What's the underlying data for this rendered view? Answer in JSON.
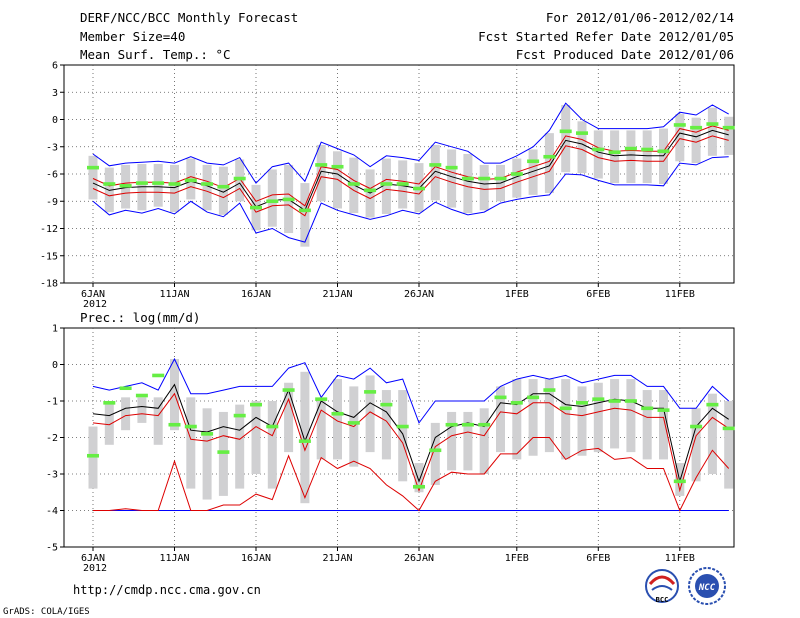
{
  "header": {
    "title": "DERF/NCC/BCC Monthly Forecast",
    "member_size": "Member Size=40",
    "variable": "Mean Surf. Temp.: °C",
    "period": "For 2012/01/06-2012/02/14",
    "started": "Fcst Started Refer Date 2012/01/05",
    "produced": "Fcst Produced Date 2012/01/06"
  },
  "footer": {
    "url": "http://cmdp.ncc.cma.gov.cn",
    "credit": "GrADS: COLA/IGES",
    "logo_left_text": "BCC",
    "logo_right_text": "NCC"
  },
  "colors": {
    "ensemble_max": "#0000ff",
    "ensemble_min": "#0000ff",
    "ensemble_mean": "#000000",
    "spread_band": "#dd0000",
    "observed": "#66ee44",
    "box": "#d0d0d2",
    "grid": "#555555"
  },
  "chart_data": [
    {
      "type": "line",
      "title": "Mean Surf. Temp.: °C",
      "ylabel": "°C",
      "ylim": [
        -18,
        6
      ],
      "yticks": [
        6,
        3,
        0,
        -3,
        -6,
        -9,
        -12,
        -15,
        -18
      ],
      "day_range": [
        0,
        39
      ],
      "xticks": [
        {
          "day": 0,
          "label": "6JAN"
        },
        {
          "day": 5,
          "label": "11JAN"
        },
        {
          "day": 10,
          "label": "16JAN"
        },
        {
          "day": 15,
          "label": "21JAN"
        },
        {
          "day": 20,
          "label": "26JAN"
        },
        {
          "day": 26,
          "label": "1FEB"
        },
        {
          "day": 31,
          "label": "6FEB"
        },
        {
          "day": 36,
          "label": "11FEB"
        }
      ],
      "year_label": "2012",
      "series": [
        {
          "name": "max",
          "values": [
            -3.8,
            -5.1,
            -4.8,
            -4.7,
            -4.6,
            -4.8,
            -4.1,
            -4.8,
            -5.0,
            -4.2,
            -7.0,
            -5.2,
            -4.8,
            -6.8,
            -2.5,
            -3.2,
            -3.9,
            -5.2,
            -4.0,
            -4.2,
            -4.5,
            -2.5,
            -3.0,
            -3.5,
            -4.8,
            -4.8,
            -4.0,
            -3.0,
            -1.2,
            1.8,
            0.0,
            -1.0,
            -1.0,
            -1.0,
            -1.0,
            -0.8,
            0.8,
            0.5,
            1.6,
            0.6
          ]
        },
        {
          "name": "upper",
          "values": [
            -6.5,
            -7.3,
            -7.0,
            -6.9,
            -6.9,
            -7.0,
            -6.3,
            -6.8,
            -7.5,
            -6.5,
            -9.0,
            -8.3,
            -8.2,
            -9.5,
            -5.2,
            -5.5,
            -6.7,
            -7.6,
            -6.6,
            -6.8,
            -7.1,
            -5.2,
            -5.8,
            -6.3,
            -6.6,
            -6.5,
            -5.8,
            -5.2,
            -4.6,
            -1.8,
            -2.2,
            -3.1,
            -3.5,
            -3.4,
            -3.5,
            -3.5,
            -1.0,
            -1.4,
            -0.7,
            -1.2
          ]
        },
        {
          "name": "mean",
          "values": [
            -7.0,
            -7.8,
            -7.5,
            -7.4,
            -7.4,
            -7.5,
            -6.8,
            -7.3,
            -8.0,
            -7.0,
            -9.6,
            -8.9,
            -8.8,
            -10.0,
            -5.7,
            -6.0,
            -7.2,
            -8.1,
            -7.1,
            -7.3,
            -7.6,
            -5.7,
            -6.3,
            -6.8,
            -7.1,
            -7.0,
            -6.3,
            -5.7,
            -5.1,
            -2.3,
            -2.7,
            -3.6,
            -4.0,
            -3.9,
            -4.0,
            -4.0,
            -1.5,
            -1.9,
            -1.2,
            -1.7
          ]
        },
        {
          "name": "lower",
          "values": [
            -7.6,
            -8.4,
            -8.1,
            -8.0,
            -8.0,
            -8.1,
            -7.4,
            -7.9,
            -8.6,
            -7.6,
            -10.2,
            -9.5,
            -9.4,
            -10.6,
            -6.3,
            -6.6,
            -7.8,
            -8.7,
            -7.7,
            -7.9,
            -8.2,
            -6.3,
            -6.9,
            -7.4,
            -7.7,
            -7.6,
            -6.9,
            -6.3,
            -5.7,
            -2.9,
            -3.3,
            -4.2,
            -4.6,
            -4.5,
            -4.6,
            -4.6,
            -2.1,
            -2.5,
            -1.8,
            -2.3
          ]
        },
        {
          "name": "min",
          "values": [
            -9.0,
            -10.5,
            -10.0,
            -10.3,
            -9.8,
            -10.4,
            -9.0,
            -10.2,
            -10.7,
            -9.2,
            -12.5,
            -12.0,
            -13.0,
            -13.5,
            -9.2,
            -10.0,
            -10.5,
            -11.0,
            -10.6,
            -10.0,
            -10.4,
            -9.1,
            -9.9,
            -10.5,
            -10.2,
            -9.2,
            -8.8,
            -8.5,
            -8.3,
            -6.0,
            -6.1,
            -6.7,
            -7.2,
            -7.2,
            -7.2,
            -7.3,
            -4.8,
            -5.0,
            -4.2,
            -4.1
          ]
        },
        {
          "name": "box_high",
          "values": [
            -4.0,
            -5.3,
            -5.0,
            -4.9,
            -4.9,
            -5.0,
            -4.3,
            -5.0,
            -5.2,
            -4.4,
            -7.2,
            -5.5,
            -5.0,
            -7.0,
            -2.8,
            -3.5,
            -4.2,
            -5.5,
            -4.3,
            -4.5,
            -4.8,
            -2.8,
            -3.3,
            -3.8,
            -5.0,
            -5.0,
            -4.3,
            -3.3,
            -1.5,
            1.6,
            -0.2,
            -1.2,
            -1.2,
            -1.2,
            -1.2,
            -1.0,
            0.6,
            0.2,
            1.3,
            0.3
          ]
        },
        {
          "name": "box_low",
          "values": [
            -8.8,
            -10.2,
            -9.8,
            -10.0,
            -9.6,
            -10.2,
            -8.8,
            -10.0,
            -10.5,
            -9.0,
            -12.2,
            -11.8,
            -12.5,
            -14.0,
            -9.0,
            -9.8,
            -10.3,
            -10.8,
            -10.4,
            -9.8,
            -10.2,
            -8.9,
            -9.7,
            -10.3,
            -10.0,
            -9.0,
            -8.6,
            -8.3,
            -8.1,
            -5.8,
            -5.9,
            -6.5,
            -7.0,
            -7.0,
            -7.0,
            -7.1,
            -4.6,
            -4.8,
            -4.0,
            -3.9
          ]
        },
        {
          "name": "observed",
          "values": [
            -5.3,
            -7.1,
            -7.3,
            -7.0,
            -7.0,
            -7.1,
            -6.7,
            -7.1,
            -7.4,
            -6.5,
            -9.7,
            -9.0,
            -8.8,
            -10.0,
            -5.0,
            -5.2,
            -7.1,
            -7.8,
            -7.1,
            -7.1,
            -7.6,
            -5.0,
            -5.3,
            -6.5,
            -6.5,
            -6.5,
            -6.0,
            -4.6,
            -4.1,
            -1.3,
            -1.5,
            -3.3,
            -3.6,
            -3.2,
            -3.3,
            -3.5,
            -0.6,
            -0.9,
            -0.5,
            -0.9
          ]
        }
      ]
    },
    {
      "type": "line",
      "title": "Prec.: log(mm/d)",
      "ylabel": "log(mm/d)",
      "ylim": [
        -5,
        1
      ],
      "yticks": [
        1,
        0,
        -1,
        -2,
        -3,
        -4,
        -5
      ],
      "day_range": [
        0,
        39
      ],
      "xticks": [
        {
          "day": 0,
          "label": "6JAN"
        },
        {
          "day": 5,
          "label": "11JAN"
        },
        {
          "day": 10,
          "label": "16JAN"
        },
        {
          "day": 15,
          "label": "21JAN"
        },
        {
          "day": 20,
          "label": "26JAN"
        },
        {
          "day": 26,
          "label": "1FEB"
        },
        {
          "day": 31,
          "label": "6FEB"
        },
        {
          "day": 36,
          "label": "11FEB"
        }
      ],
      "year_label": "2012",
      "series": [
        {
          "name": "max",
          "values": [
            -0.6,
            -0.7,
            -0.6,
            -0.5,
            -0.7,
            0.15,
            -0.8,
            -0.8,
            -0.7,
            -0.6,
            -0.6,
            -0.6,
            -0.1,
            0.05,
            -0.9,
            -0.3,
            -0.4,
            -0.1,
            -0.5,
            -0.4,
            -1.6,
            -1.0,
            -1.0,
            -1.0,
            -1.0,
            -0.6,
            -0.4,
            -0.3,
            -0.4,
            -0.3,
            -0.5,
            -0.4,
            -0.3,
            -0.3,
            -0.6,
            -0.6,
            -1.2,
            -1.2,
            -0.6,
            -1.0
          ]
        },
        {
          "name": "mean",
          "values": [
            -1.35,
            -1.4,
            -1.2,
            -1.15,
            -1.2,
            -0.55,
            -1.8,
            -1.85,
            -1.7,
            -1.8,
            -1.45,
            -1.7,
            -0.7,
            -2.1,
            -1.0,
            -1.3,
            -1.45,
            -1.05,
            -1.3,
            -1.9,
            -3.2,
            -2.0,
            -1.7,
            -1.6,
            -1.7,
            -1.05,
            -1.1,
            -0.8,
            -0.8,
            -1.1,
            -1.15,
            -1.05,
            -0.95,
            -1.0,
            -1.2,
            -1.2,
            -3.2,
            -1.7,
            -1.2,
            -1.5
          ]
        },
        {
          "name": "upper",
          "values": [
            -1.6,
            -1.65,
            -1.4,
            -1.35,
            -1.4,
            -0.8,
            -2.05,
            -2.1,
            -1.95,
            -2.05,
            -1.7,
            -1.95,
            -0.95,
            -2.35,
            -1.25,
            -1.55,
            -1.7,
            -1.3,
            -1.55,
            -2.15,
            -3.45,
            -2.25,
            -1.95,
            -1.85,
            -1.95,
            -1.3,
            -1.35,
            -1.05,
            -1.05,
            -1.35,
            -1.4,
            -1.3,
            -1.2,
            -1.25,
            -1.45,
            -1.45,
            -3.45,
            -1.95,
            -1.45,
            -1.75
          ]
        },
        {
          "name": "lower",
          "values": [
            -4.0,
            -4.0,
            -3.95,
            -4.0,
            -4.0,
            -2.65,
            -4.0,
            -4.0,
            -3.85,
            -3.85,
            -3.55,
            -3.7,
            -2.5,
            -3.65,
            -2.55,
            -2.85,
            -2.65,
            -2.85,
            -3.3,
            -3.6,
            -4.0,
            -3.2,
            -2.95,
            -3.0,
            -3.0,
            -2.45,
            -2.45,
            -2.0,
            -2.0,
            -2.6,
            -2.35,
            -2.3,
            -2.6,
            -2.55,
            -2.85,
            -2.85,
            -4.0,
            -3.1,
            -2.35,
            -2.85
          ]
        },
        {
          "name": "min",
          "values": [
            -4.0,
            -4.0,
            -4.0,
            -4.0,
            -4.0,
            -4.0,
            -4.0,
            -4.0,
            -4.0,
            -4.0,
            -4.0,
            -4.0,
            -4.0,
            -4.0,
            -4.0,
            -4.0,
            -4.0,
            -4.0,
            -4.0,
            -4.0,
            -4.0,
            -4.0,
            -4.0,
            -4.0,
            -4.0,
            -4.0,
            -4.0,
            -4.0,
            -4.0,
            -4.0,
            -4.0,
            -4.0,
            -4.0,
            -4.0,
            -4.0,
            -4.0,
            -4.0,
            -4.0,
            -4.0,
            -4.0
          ]
        },
        {
          "name": "box_high",
          "values": [
            -1.7,
            -1.0,
            -0.9,
            -0.9,
            -0.9,
            0.15,
            -0.9,
            -1.2,
            -1.3,
            -1.1,
            -1.0,
            -1.0,
            -0.5,
            -0.2,
            -1.0,
            -0.4,
            -0.6,
            -0.3,
            -0.7,
            -0.7,
            -2.7,
            -1.6,
            -1.3,
            -1.3,
            -1.2,
            -0.6,
            -0.4,
            -0.4,
            -0.4,
            -0.4,
            -0.6,
            -0.5,
            -0.4,
            -0.4,
            -0.7,
            -0.7,
            -2.7,
            -1.2,
            -0.8,
            -1.0
          ]
        },
        {
          "name": "box_low",
          "values": [
            -3.4,
            -2.2,
            -1.8,
            -1.6,
            -2.2,
            -1.8,
            -3.4,
            -3.7,
            -3.6,
            -3.4,
            -3.0,
            -3.4,
            -2.4,
            -3.8,
            -2.6,
            -2.6,
            -2.8,
            -2.4,
            -2.6,
            -3.2,
            -3.5,
            -3.3,
            -2.9,
            -2.9,
            -3.0,
            -2.4,
            -2.6,
            -2.5,
            -2.4,
            -2.6,
            -2.5,
            -2.4,
            -2.3,
            -2.4,
            -2.6,
            -2.6,
            -3.6,
            -3.2,
            -3.0,
            -3.4
          ]
        },
        {
          "name": "observed",
          "values": [
            -2.5,
            -1.05,
            -0.65,
            -0.85,
            -0.3,
            -1.65,
            -1.7,
            -1.9,
            -2.4,
            -1.4,
            -1.1,
            -1.7,
            -0.7,
            -2.1,
            -0.95,
            -1.35,
            -1.6,
            -0.75,
            -1.1,
            -1.7,
            -3.35,
            -2.35,
            -1.65,
            -1.65,
            -1.65,
            -0.9,
            -1.05,
            -0.9,
            -0.7,
            -1.2,
            -1.05,
            -0.95,
            -1.0,
            -1.0,
            -1.2,
            -1.25,
            -3.2,
            -1.7,
            -1.1,
            -1.75
          ]
        }
      ]
    }
  ]
}
